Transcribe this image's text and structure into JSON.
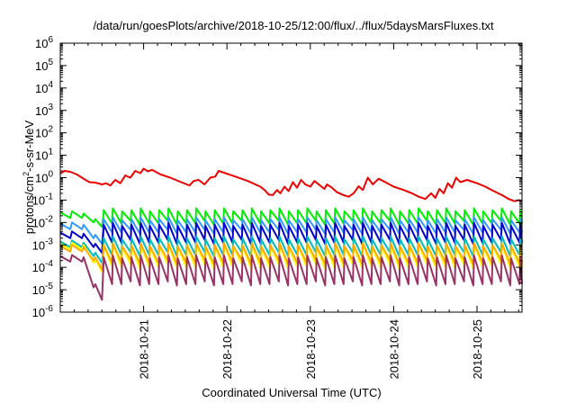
{
  "chart_data": {
    "type": "line",
    "title": "/data/run/goesPlots/archive/2018-10-25/12:00/flux/../flux/5daysMarsFluxes.txt",
    "xlabel": "Coordinated Universal Time (UTC)",
    "ylabel_parts": [
      "protons/cm",
      "2",
      "-s-sr-MeV"
    ],
    "y_log": true,
    "ylim_exp": [
      -6,
      6
    ],
    "xlim_days": [
      "2018-10-20 00:00",
      "2018-10-25 13:00"
    ],
    "y_ticks": [
      {
        "base": "10",
        "exp": "-6",
        "value": -6
      },
      {
        "base": "10",
        "exp": "-5",
        "value": -5
      },
      {
        "base": "10",
        "exp": "-4",
        "value": -4
      },
      {
        "base": "10",
        "exp": "-3",
        "value": -3
      },
      {
        "base": "10",
        "exp": "-2",
        "value": -2
      },
      {
        "base": "10",
        "exp": "-1",
        "value": -1
      },
      {
        "base": "10",
        "exp": "0",
        "value": 0
      },
      {
        "base": "10",
        "exp": "1",
        "value": 1
      },
      {
        "base": "10",
        "exp": "2",
        "value": 2
      },
      {
        "base": "10",
        "exp": "3",
        "value": 3
      },
      {
        "base": "10",
        "exp": "4",
        "value": 4
      },
      {
        "base": "10",
        "exp": "5",
        "value": 5
      },
      {
        "base": "10",
        "exp": "6",
        "value": 6
      }
    ],
    "x_ticks": [
      {
        "label": "2018-10-21",
        "day": 1
      },
      {
        "label": "2018-10-22",
        "day": 2
      },
      {
        "label": "2018-10-23",
        "day": 3
      },
      {
        "label": "2018-10-24",
        "day": 4
      },
      {
        "label": "2018-10-25",
        "day": 5
      }
    ],
    "red_series": {
      "color": "#ee0000",
      "points": [
        [
          0.0,
          0.18
        ],
        [
          0.05,
          0.3
        ],
        [
          0.12,
          0.26
        ],
        [
          0.2,
          0.14
        ],
        [
          0.28,
          -0.05
        ],
        [
          0.35,
          -0.2
        ],
        [
          0.42,
          -0.22
        ],
        [
          0.5,
          -0.3
        ],
        [
          0.55,
          -0.25
        ],
        [
          0.6,
          -0.35
        ],
        [
          0.66,
          -0.1
        ],
        [
          0.72,
          -0.25
        ],
        [
          0.78,
          0.1
        ],
        [
          0.84,
          0.0
        ],
        [
          0.9,
          0.3
        ],
        [
          0.96,
          0.2
        ],
        [
          1.0,
          0.4
        ],
        [
          1.05,
          0.28
        ],
        [
          1.1,
          0.35
        ],
        [
          1.2,
          0.15
        ],
        [
          1.32,
          0.0
        ],
        [
          1.45,
          -0.2
        ],
        [
          1.55,
          -0.35
        ],
        [
          1.6,
          -0.15
        ],
        [
          1.66,
          -0.1
        ],
        [
          1.73,
          -0.3
        ],
        [
          1.8,
          0.0
        ],
        [
          1.86,
          0.05
        ],
        [
          1.9,
          0.3
        ],
        [
          1.98,
          0.2
        ],
        [
          2.1,
          0.05
        ],
        [
          2.25,
          -0.15
        ],
        [
          2.4,
          -0.4
        ],
        [
          2.45,
          -0.55
        ],
        [
          2.5,
          -0.75
        ],
        [
          2.55,
          -0.78
        ],
        [
          2.6,
          -0.55
        ],
        [
          2.64,
          -0.7
        ],
        [
          2.69,
          -0.4
        ],
        [
          2.74,
          -0.6
        ],
        [
          2.79,
          -0.2
        ],
        [
          2.84,
          -0.45
        ],
        [
          2.89,
          -0.1
        ],
        [
          2.94,
          -0.3
        ],
        [
          3.0,
          -0.4
        ],
        [
          3.05,
          -0.15
        ],
        [
          3.1,
          -0.3
        ],
        [
          3.17,
          -0.5
        ],
        [
          3.2,
          -0.3
        ],
        [
          3.26,
          -0.45
        ],
        [
          3.32,
          -0.65
        ],
        [
          3.4,
          -0.78
        ],
        [
          3.46,
          -0.85
        ],
        [
          3.52,
          -0.7
        ],
        [
          3.58,
          -0.38
        ],
        [
          3.63,
          -0.55
        ],
        [
          3.69,
          0.0
        ],
        [
          3.75,
          -0.3
        ],
        [
          3.82,
          -0.05
        ],
        [
          3.9,
          -0.2
        ],
        [
          4.0,
          -0.4
        ],
        [
          4.12,
          -0.55
        ],
        [
          4.22,
          -0.7
        ],
        [
          4.3,
          -0.85
        ],
        [
          4.38,
          -0.95
        ],
        [
          4.45,
          -0.7
        ],
        [
          4.5,
          -0.9
        ],
        [
          4.55,
          -0.5
        ],
        [
          4.6,
          -0.7
        ],
        [
          4.65,
          -0.25
        ],
        [
          4.7,
          -0.45
        ],
        [
          4.75,
          0.0
        ],
        [
          4.8,
          -0.2
        ],
        [
          4.88,
          -0.1
        ],
        [
          5.0,
          -0.25
        ],
        [
          5.1,
          -0.4
        ],
        [
          5.2,
          -0.6
        ],
        [
          5.3,
          -0.78
        ],
        [
          5.38,
          -0.95
        ],
        [
          5.45,
          -1.05
        ],
        [
          5.52,
          -1.0
        ]
      ]
    },
    "periodic_series": [
      {
        "color": "#00ee00",
        "start_hi": -1.55,
        "start_lo": -2.0,
        "dip_lo": -2.2,
        "hi": -1.45,
        "lo": -2.05
      },
      {
        "color": "#3399ff",
        "start_hi": -2.05,
        "start_lo": -2.7,
        "dip_lo": -2.95,
        "hi": -1.85,
        "lo": -2.45
      },
      {
        "color": "#0000cc",
        "start_hi": -2.45,
        "start_lo": -3.1,
        "dip_lo": -3.35,
        "hi": -2.1,
        "lo": -2.9
      },
      {
        "color": "#00bbbb",
        "start_hi": -2.85,
        "start_lo": -3.5,
        "dip_lo": -3.8,
        "hi": -2.7,
        "lo": -3.45
      },
      {
        "color": "#ffff00",
        "start_hi": -2.95,
        "start_lo": -3.8,
        "dip_lo": -4.2,
        "hi": -3.05,
        "lo": -4.0
      },
      {
        "color": "#ffaa00",
        "start_hi": -3.05,
        "start_lo": -3.7,
        "dip_lo": -4.1,
        "hi": -3.0,
        "lo": -3.8
      },
      {
        "color": "#993366",
        "start_hi": -3.5,
        "start_lo": -4.9,
        "dip_lo": -5.45,
        "hi": -3.55,
        "lo": -4.75
      }
    ]
  }
}
